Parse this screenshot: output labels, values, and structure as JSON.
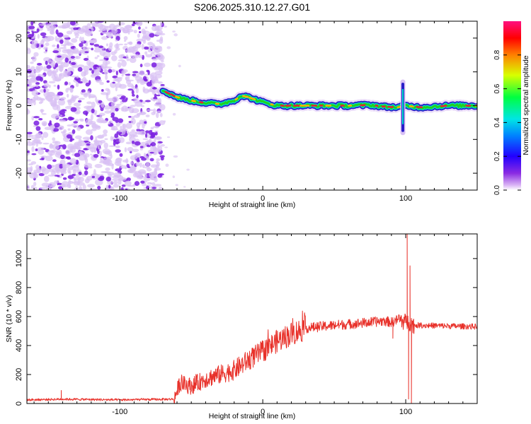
{
  "title": "S206.2025.310.12.27.G01",
  "colors": {
    "snr_line": "#e8312a",
    "ridge_outer": "#2a1fc8",
    "ridge_mid": "#00e0c8",
    "ridge_inner": "#20d020",
    "ridge_core": "#e82030",
    "noise_light": "#d8c0f4",
    "noise_dark": "#7a1fe0"
  },
  "chart_data": [
    {
      "type": "heatmap",
      "name": "spectrogram",
      "xlabel": "Height of straight line (km)",
      "ylabel": "Frequency (Hz)",
      "xlim": [
        -165,
        150
      ],
      "ylim": [
        -25,
        25
      ],
      "xticks": [
        -100,
        0,
        100
      ],
      "xtick_labels": [
        "-100",
        "0",
        "100"
      ],
      "yticks": [
        -20,
        -10,
        0,
        10,
        20
      ],
      "ytick_labels": [
        "-20",
        "-10",
        "0",
        "10",
        "20"
      ],
      "noise_region_x": [
        -165,
        -70
      ],
      "ridge": {
        "x": [
          -70,
          -60,
          -50,
          -40,
          -30,
          -20,
          -15,
          -10,
          0,
          10,
          20,
          40,
          60,
          75,
          85,
          95,
          100,
          110,
          130,
          150
        ],
        "y": [
          4.5,
          2.5,
          1.5,
          0.8,
          0.5,
          1.5,
          3.0,
          2.5,
          1.0,
          0.0,
          0.0,
          0.0,
          0.0,
          0.2,
          -0.3,
          -0.5,
          0.0,
          -0.5,
          0.0,
          0.0
        ]
      },
      "spike": {
        "x": 98,
        "ymin": -8,
        "ymax": 7
      },
      "colorbar": {
        "label": "Normalized spectral amplitude",
        "range": [
          0,
          1
        ],
        "ticks": [
          0.0,
          0.2,
          0.4,
          0.6,
          0.8
        ],
        "tick_labels": [
          "0.0",
          "0.2",
          "0.4",
          "0.6",
          "0.8"
        ],
        "colors": [
          "#ffffff",
          "#d9b3f5",
          "#8a2be2",
          "#2200ff",
          "#0080ff",
          "#00e5e5",
          "#00ff40",
          "#d8ff00",
          "#ff8000",
          "#ff0000",
          "#ff1080"
        ]
      }
    },
    {
      "type": "line",
      "name": "snr",
      "xlabel": "Height of straight line (km)",
      "ylabel": "SNR (10 * v/v)",
      "xlim": [
        -165,
        150
      ],
      "ylim": [
        0,
        1170
      ],
      "xticks": [
        -100,
        0,
        100
      ],
      "xtick_labels": [
        "-100",
        "0",
        "100"
      ],
      "yticks": [
        0,
        200,
        400,
        600,
        800,
        1000
      ],
      "ytick_labels": [
        "0",
        "200",
        "400",
        "600",
        "800",
        "1000"
      ],
      "series": [
        {
          "name": "SNR",
          "anchors_x": [
            -165,
            -140,
            -100,
            -62,
            -58,
            -50,
            -40,
            -30,
            -20,
            -10,
            0,
            10,
            20,
            30,
            50,
            70,
            85,
            90,
            95,
            100,
            103,
            106,
            110,
            130,
            150
          ],
          "anchors_y": [
            25,
            30,
            25,
            30,
            140,
            120,
            170,
            200,
            230,
            300,
            360,
            430,
            480,
            520,
            540,
            555,
            570,
            560,
            580,
            560,
            560,
            540,
            540,
            535,
            530
          ],
          "spikes": [
            {
              "x": -141,
              "y": 90
            },
            {
              "x": 91,
              "y": 450
            },
            {
              "x": 101,
              "y": 1170
            },
            {
              "x": 102,
              "y": 30
            },
            {
              "x": 103,
              "y": 950
            },
            {
              "x": 104,
              "y": 0
            }
          ]
        }
      ]
    }
  ]
}
